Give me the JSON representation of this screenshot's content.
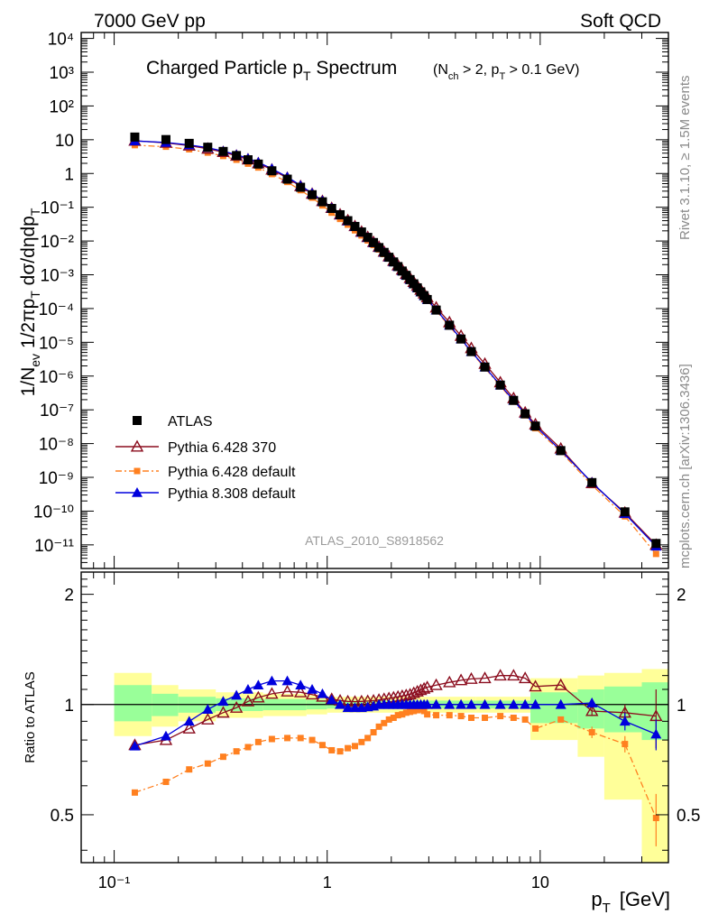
{
  "header": {
    "energy_label": "7000 GeV pp",
    "category_label": "Soft QCD",
    "analysis_id": "ATLAS_2010_S8918562",
    "side_top": "Rivet 3.1.10, ≥ 1.5M events",
    "side_bottom": "mcplots.cern.ch [arXiv:1306.3436]"
  },
  "main_panel": {
    "title_main": "Charged Particle p",
    "title_main_sub": "T",
    "title_main_rest": " Spectrum",
    "title_cut_open": "(N",
    "title_cut_sub1": "ch",
    "title_cut_mid": " > 2, p",
    "title_cut_sub2": "T",
    "title_cut_close": " > 0.1 GeV)",
    "ylabel": "1/N_ev 1/2πp_T dσ/dηdp_T",
    "ytick_labels": [
      "10",
      "10",
      "10",
      "10",
      "10",
      "10",
      "10",
      "10",
      "10",
      "10",
      "10",
      "10",
      "10",
      "10",
      "10",
      "10"
    ],
    "ytick_base_display": [
      "10⁴",
      "10³",
      "10²",
      "10",
      "1",
      "10⁻¹",
      "10⁻²",
      "10⁻³",
      "10⁻⁴",
      "10⁻⁵",
      "10⁻⁶",
      "10⁻⁷",
      "10⁻⁸",
      "10⁻⁹",
      "10⁻¹⁰",
      "10⁻¹¹"
    ]
  },
  "ratio_panel": {
    "ylabel": "Ratio to ATLAS",
    "ytick_labels": [
      "0.5",
      "1",
      "2"
    ],
    "xlabel": "p",
    "xlabel_sub": "T",
    "xlabel_unit": "[GeV]",
    "xtick_labels": [
      "10⁻¹",
      "1",
      "10"
    ]
  },
  "legend": [
    {
      "label": "ATLAS"
    },
    {
      "label": "Pythia 6.428 370"
    },
    {
      "label": "Pythia 6.428 default"
    },
    {
      "label": "Pythia 8.308 default"
    }
  ],
  "colors": {
    "atlas": "#000000",
    "p6_370": "#8b0d1e",
    "p6_default": "#ff8020",
    "p8_default": "#0000dd",
    "band_inner": "#99ff99",
    "band_outer": "#ffff99"
  },
  "chart_data": [
    {
      "type": "scatter",
      "x_scale": "log",
      "y_scale": "log",
      "xlim": [
        0.07,
        40
      ],
      "ylim": [
        2e-12,
        15000.0
      ],
      "x": [
        0.125,
        0.175,
        0.225,
        0.275,
        0.325,
        0.375,
        0.425,
        0.475,
        0.55,
        0.65,
        0.75,
        0.85,
        0.95,
        1.05,
        1.15,
        1.25,
        1.35,
        1.45,
        1.55,
        1.65,
        1.75,
        1.85,
        1.95,
        2.05,
        2.15,
        2.25,
        2.35,
        2.45,
        2.55,
        2.65,
        2.75,
        2.85,
        2.95,
        3.25,
        3.75,
        4.25,
        4.75,
        5.5,
        6.5,
        7.5,
        8.5,
        9.5,
        12.5,
        17.5,
        25,
        35
      ],
      "series": [
        {
          "name": "ATLAS",
          "values": [
            12.0,
            10.1,
            7.8,
            6.0,
            4.5,
            3.4,
            2.55,
            1.9,
            1.2,
            0.68,
            0.39,
            0.235,
            0.145,
            0.092,
            0.06,
            0.04,
            0.027,
            0.0185,
            0.0128,
            0.009,
            0.0064,
            0.0046,
            0.0033,
            0.0024,
            0.00175,
            0.00129,
            0.00096,
            0.00072,
            0.00054,
            0.00041,
            0.00031,
            0.00024,
            0.000185,
            9e-05,
            3.2e-05,
            1.25e-05,
            5.3e-06,
            1.85e-06,
            5.4e-07,
            1.9e-07,
            7.6e-08,
            3.3e-08,
            6.2e-09,
            7e-10,
            9.5e-11,
            1.1e-11
          ]
        },
        {
          "name": "Pythia 6.428 370",
          "values": [
            9.3,
            8.1,
            6.7,
            5.4,
            4.3,
            3.35,
            2.6,
            2.0,
            1.3,
            0.74,
            0.42,
            0.25,
            0.152,
            0.095,
            0.061,
            0.041,
            0.0275,
            0.0188,
            0.0131,
            0.0093,
            0.0067,
            0.0048,
            0.0035,
            0.00258,
            0.0019,
            0.00141,
            0.00106,
            0.0008,
            0.00061,
            0.00047,
            0.00036,
            0.00028,
            0.000215,
            0.000107,
            3.9e-05,
            1.55e-05,
            6.7e-06,
            2.3e-06,
            6.5e-07,
            2.2e-07,
            8.3e-08,
            3.7e-08,
            7.1e-09,
            6.7e-10,
            9e-11,
            1e-11
          ]
        },
        {
          "name": "Pythia 6.428 default",
          "values": [
            6.9,
            6.2,
            5.2,
            4.15,
            3.3,
            2.55,
            1.95,
            1.5,
            0.96,
            0.56,
            0.32,
            0.192,
            0.113,
            0.069,
            0.045,
            0.0305,
            0.0207,
            0.0146,
            0.0104,
            0.0076,
            0.0056,
            0.0041,
            0.00305,
            0.00226,
            0.00168,
            0.00125,
            0.00094,
            0.00071,
            0.00053,
            0.0004,
            0.0003,
            0.00023,
            0.000175,
            8.5e-05,
            3e-05,
            1.2e-05,
            5e-06,
            1.75e-06,
            5.1e-07,
            1.75e-07,
            6.9e-08,
            2.85e-08,
            5.7e-09,
            5.9e-10,
            7e-11,
            5.4e-12
          ]
        },
        {
          "name": "Pythia 8.308 default",
          "values": [
            9.2,
            8.3,
            7.0,
            5.8,
            4.6,
            3.6,
            2.8,
            2.15,
            1.39,
            0.79,
            0.44,
            0.26,
            0.155,
            0.095,
            0.059,
            0.039,
            0.0265,
            0.0181,
            0.0126,
            0.0089,
            0.0064,
            0.0046,
            0.0033,
            0.0024,
            0.00175,
            0.00129,
            0.00096,
            0.00072,
            0.00054,
            0.00041,
            0.00031,
            0.00024,
            0.000185,
            9e-05,
            3.2e-05,
            1.25e-05,
            5.3e-06,
            1.85e-06,
            5.4e-07,
            1.9e-07,
            7.6e-08,
            3.3e-08,
            6.2e-09,
            7.1e-10,
            8.4e-11,
            9.1e-12
          ]
        }
      ]
    },
    {
      "type": "line",
      "x_scale": "log",
      "y_scale": "log",
      "xlim": [
        0.07,
        40
      ],
      "ylim": [
        0.37,
        2.3
      ],
      "x": [
        0.125,
        0.175,
        0.225,
        0.275,
        0.325,
        0.375,
        0.425,
        0.475,
        0.55,
        0.65,
        0.75,
        0.85,
        0.95,
        1.05,
        1.15,
        1.25,
        1.35,
        1.45,
        1.55,
        1.65,
        1.75,
        1.85,
        1.95,
        2.05,
        2.15,
        2.25,
        2.35,
        2.45,
        2.55,
        2.65,
        2.75,
        2.85,
        2.95,
        3.25,
        3.75,
        4.25,
        4.75,
        5.5,
        6.5,
        7.5,
        8.5,
        9.5,
        12.5,
        17.5,
        25,
        35
      ],
      "uncertainty_bands": {
        "edges": [
          0.1,
          0.15,
          0.2,
          0.3,
          0.5,
          0.8,
          1.0,
          2.0,
          3.0,
          5.0,
          9.0,
          15.0,
          20.0,
          30.0,
          40.0
        ],
        "inner": [
          [
            0.9,
            1.13
          ],
          [
            0.93,
            1.07
          ],
          [
            0.95,
            1.05
          ],
          [
            0.96,
            1.04
          ],
          [
            0.965,
            1.035
          ],
          [
            0.97,
            1.03
          ],
          [
            0.975,
            1.025
          ],
          [
            0.975,
            1.025
          ],
          [
            0.975,
            1.025
          ],
          [
            0.975,
            1.025
          ],
          [
            0.89,
            1.08
          ],
          [
            0.86,
            1.1
          ],
          [
            0.84,
            1.12
          ],
          [
            0.8,
            1.15
          ]
        ],
        "outer": [
          [
            0.82,
            1.22
          ],
          [
            0.87,
            1.13
          ],
          [
            0.9,
            1.1
          ],
          [
            0.92,
            1.08
          ],
          [
            0.93,
            1.07
          ],
          [
            0.94,
            1.06
          ],
          [
            0.95,
            1.05
          ],
          [
            0.95,
            1.05
          ],
          [
            0.95,
            1.05
          ],
          [
            0.95,
            1.05
          ],
          [
            0.8,
            1.18
          ],
          [
            0.72,
            1.2
          ],
          [
            0.55,
            1.22
          ],
          [
            0.35,
            1.25
          ]
        ]
      },
      "series": [
        {
          "name": "Pythia 6.428 370",
          "values": [
            0.775,
            0.8,
            0.86,
            0.91,
            0.95,
            0.98,
            1.02,
            1.045,
            1.07,
            1.085,
            1.08,
            1.065,
            1.05,
            1.035,
            1.025,
            1.02,
            1.018,
            1.02,
            1.022,
            1.025,
            1.03,
            1.035,
            1.04,
            1.045,
            1.05,
            1.055,
            1.06,
            1.065,
            1.075,
            1.085,
            1.095,
            1.105,
            1.115,
            1.13,
            1.15,
            1.165,
            1.175,
            1.18,
            1.2,
            1.2,
            1.18,
            1.12,
            1.13,
            0.96,
            0.95,
            0.93
          ],
          "errors": [
            0,
            0,
            0,
            0,
            0,
            0,
            0,
            0,
            0,
            0,
            0,
            0,
            0,
            0,
            0,
            0,
            0,
            0,
            0,
            0,
            0,
            0,
            0,
            0,
            0,
            0,
            0,
            0,
            0,
            0,
            0,
            0,
            0,
            0,
            0,
            0,
            0,
            0,
            0,
            0,
            0,
            0,
            0,
            0.03,
            0.05,
            0.17
          ]
        },
        {
          "name": "Pythia 6.428 default",
          "values": [
            0.575,
            0.615,
            0.665,
            0.69,
            0.72,
            0.745,
            0.765,
            0.79,
            0.805,
            0.81,
            0.81,
            0.8,
            0.775,
            0.75,
            0.745,
            0.76,
            0.77,
            0.79,
            0.81,
            0.84,
            0.87,
            0.89,
            0.91,
            0.92,
            0.935,
            0.94,
            0.95,
            0.955,
            0.96,
            0.965,
            0.97,
            0.96,
            0.94,
            0.935,
            0.935,
            0.93,
            0.92,
            0.92,
            0.93,
            0.92,
            0.91,
            0.86,
            0.91,
            0.84,
            0.78,
            0.49
          ],
          "errors": [
            0,
            0,
            0,
            0,
            0,
            0,
            0,
            0,
            0,
            0,
            0,
            0,
            0,
            0,
            0,
            0,
            0,
            0,
            0,
            0,
            0,
            0,
            0,
            0,
            0,
            0,
            0,
            0,
            0,
            0,
            0,
            0,
            0,
            0,
            0,
            0,
            0,
            0,
            0,
            0,
            0,
            0,
            0,
            0.03,
            0.04,
            0.08
          ]
        },
        {
          "name": "Pythia 8.308 default",
          "values": [
            0.77,
            0.82,
            0.9,
            0.97,
            1.02,
            1.06,
            1.1,
            1.13,
            1.16,
            1.16,
            1.13,
            1.1,
            1.07,
            1.03,
            1.0,
            0.98,
            0.98,
            0.98,
            0.985,
            0.99,
            1.0,
            1.0,
            1.0,
            1.0,
            1.0,
            1.0,
            1.0,
            1.0,
            1.0,
            1.0,
            1.0,
            1.0,
            1.0,
            1.0,
            1.0,
            1.0,
            1.0,
            1.0,
            1.0,
            1.0,
            1.0,
            1.0,
            1.0,
            1.01,
            0.9,
            0.83
          ],
          "errors": [
            0,
            0,
            0,
            0,
            0,
            0,
            0,
            0,
            0,
            0,
            0,
            0,
            0,
            0,
            0,
            0,
            0,
            0,
            0,
            0,
            0,
            0,
            0,
            0,
            0,
            0,
            0,
            0,
            0,
            0,
            0,
            0,
            0,
            0,
            0,
            0,
            0,
            0,
            0,
            0,
            0,
            0,
            0,
            0.03,
            0.05,
            0.08
          ]
        }
      ]
    }
  ]
}
